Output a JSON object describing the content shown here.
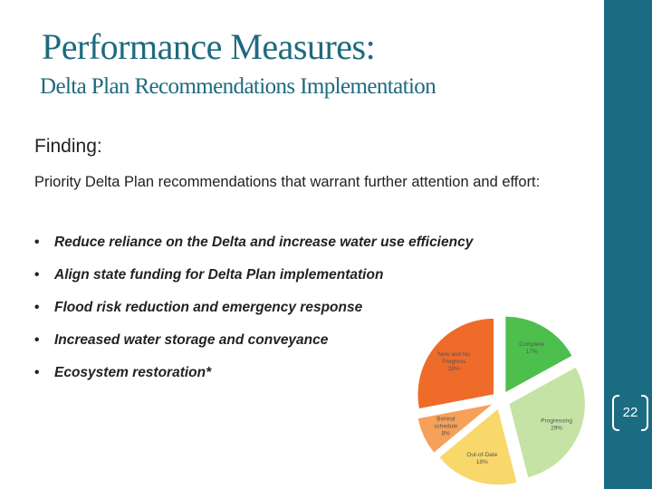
{
  "slide": {
    "title": "Performance Measures:",
    "subtitle": "Delta Plan Recommendations Implementation",
    "finding_label": "Finding:",
    "description": "Priority Delta Plan recommendations that warrant further attention and effort:",
    "bullets": [
      "Reduce reliance on the Delta and increase water use efficiency",
      "Align state funding for Delta Plan implementation",
      "Flood risk reduction and emergency response",
      "Increased water storage and conveyance",
      "Ecosystem restoration*"
    ],
    "bullet_symbol": "•",
    "page_number": "22"
  },
  "colors": {
    "accent": "#1b6b82",
    "title": "#1e6a7f"
  },
  "chart_data": {
    "type": "pie",
    "slices": [
      {
        "label": "Complete",
        "value": 17,
        "display": "17%",
        "color": "#4cbf4c"
      },
      {
        "label": "Progressing",
        "value": 29,
        "display": "29%",
        "color": "#c4e3a4"
      },
      {
        "label": "Out-of-Date",
        "value": 18,
        "display": "18%",
        "color": "#f8d86a"
      },
      {
        "label": "Behind schedule",
        "value": 8,
        "display": "8%",
        "color": "#f6a05a"
      },
      {
        "label": "New and No Progress",
        "value": 28,
        "display": "28%",
        "color": "#ee6b2a"
      }
    ]
  }
}
